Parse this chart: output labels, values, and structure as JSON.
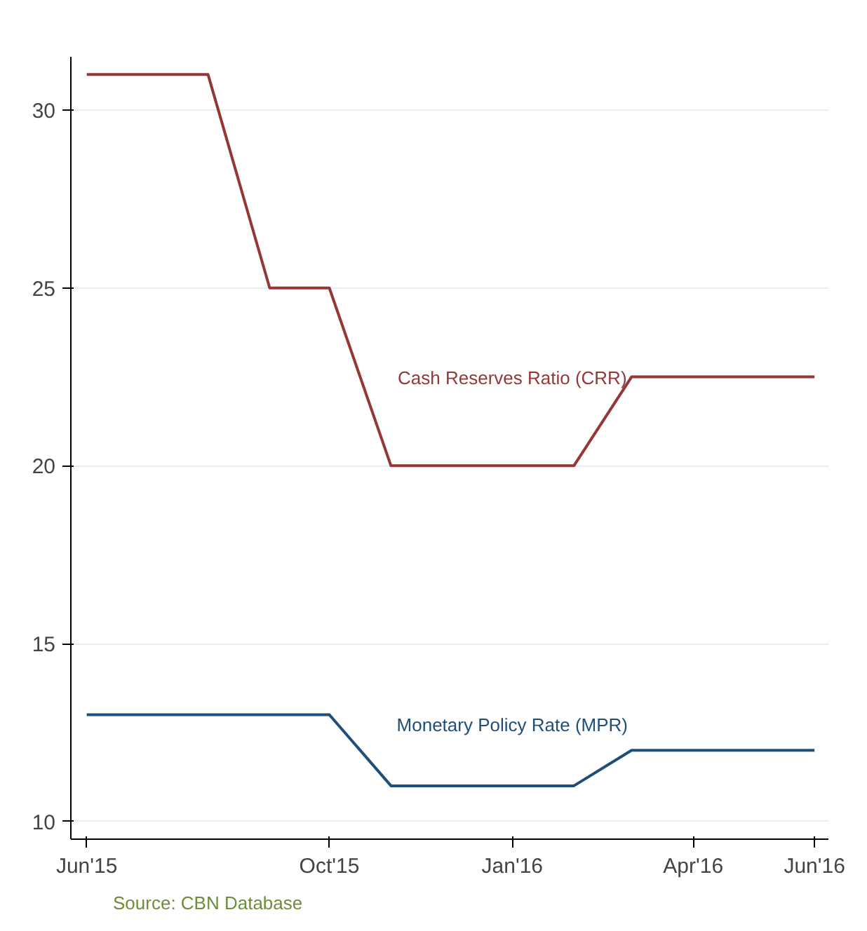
{
  "chart_data": {
    "type": "line",
    "x": [
      "2015-06",
      "2015-07",
      "2015-08",
      "2015-09",
      "2015-10",
      "2015-11",
      "2015-12",
      "2016-01",
      "2016-02",
      "2016-03",
      "2016-04",
      "2016-05",
      "2016-06"
    ],
    "series": [
      {
        "name": "Cash Reserves Ratio (CRR)",
        "color": "#953737",
        "values": [
          31,
          31,
          31,
          25,
          25,
          20,
          20,
          20,
          20,
          22.5,
          22.5,
          22.5,
          22.5
        ]
      },
      {
        "name": "Monetary Policy Rate (MPR)",
        "color": "#1f4e79",
        "values": [
          13,
          13,
          13,
          13,
          13,
          11,
          11,
          11,
          11,
          12,
          12,
          12,
          12
        ]
      }
    ],
    "xlim": [
      "2015-05-24",
      "2016-06-08"
    ],
    "xticks": [
      {
        "value": "2015-06",
        "label": "Jun'15"
      },
      {
        "value": "2015-10",
        "label": "Oct'15"
      },
      {
        "value": "2016-01",
        "label": "Jan'16"
      },
      {
        "value": "2016-04",
        "label": "Apr'16"
      },
      {
        "value": "2016-06",
        "label": "Jun'16"
      }
    ],
    "ylim": [
      9.5,
      31.5
    ],
    "yticks": [
      10,
      15,
      20,
      25,
      30
    ],
    "grid": "y",
    "legend": false,
    "marker": "none",
    "line_style": "solid",
    "annotations": [
      "Source: CBN Database"
    ]
  }
}
